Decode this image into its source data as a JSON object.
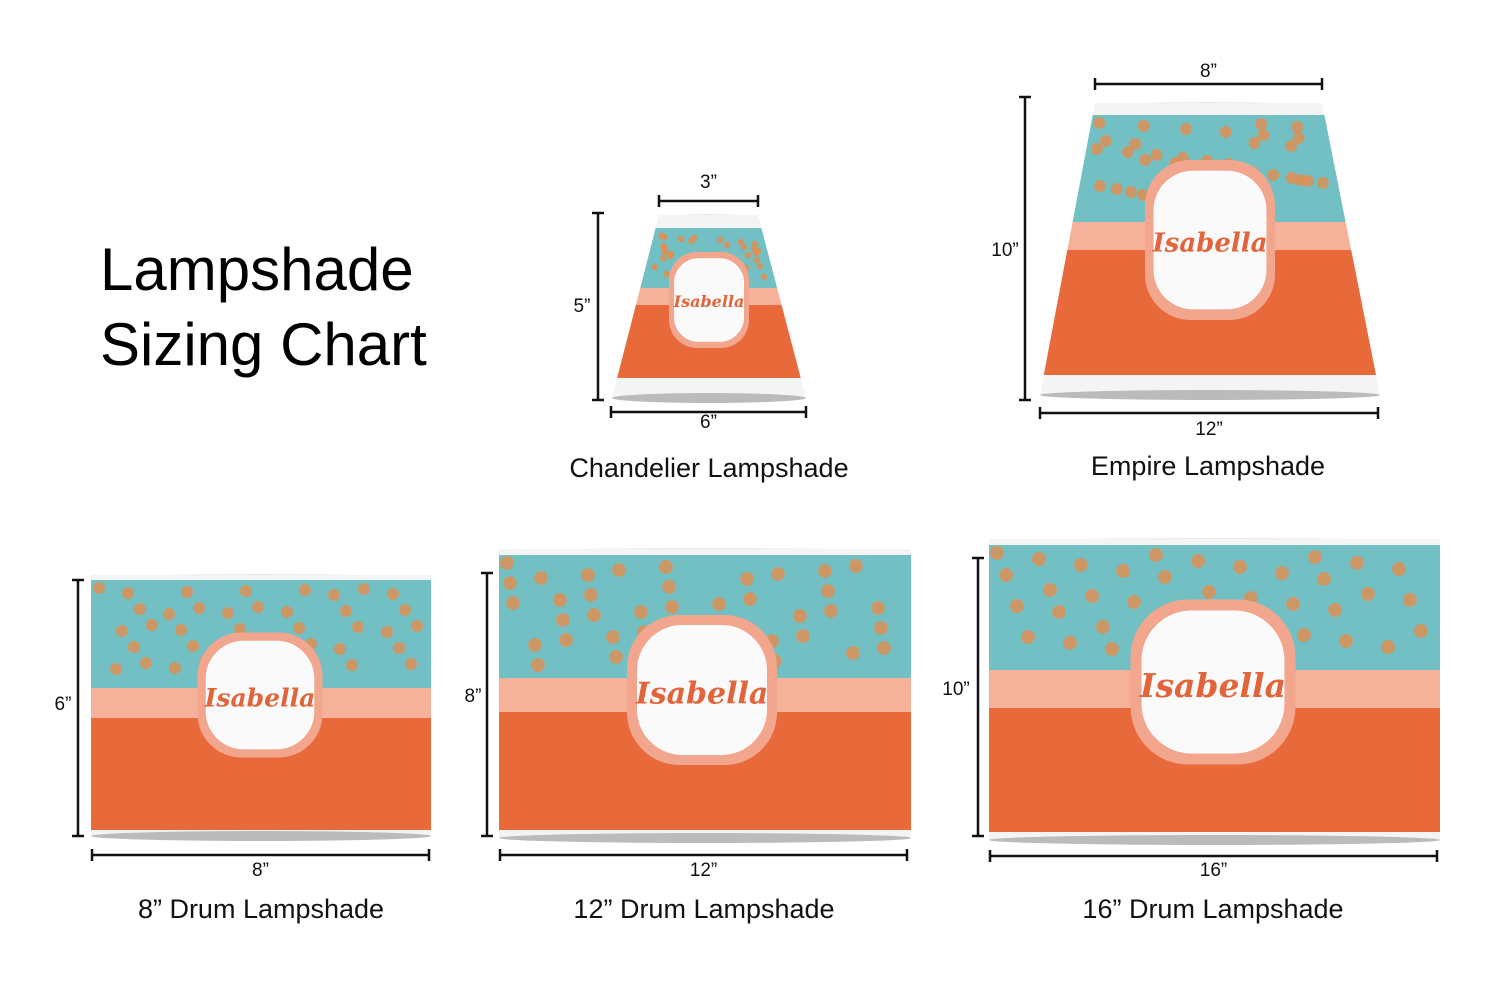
{
  "title": {
    "line1": "Lampshade",
    "line2": "Sizing Chart"
  },
  "colors": {
    "pattern": "#72c0c4",
    "band": "#f6b19a",
    "base": "#e8693a",
    "label_text": "#e2643a",
    "label_border": "#f3a68e",
    "rim": "#f4f4f4"
  },
  "personalization": "Isabella",
  "shades": [
    {
      "caption": "Chandelier Lampshade",
      "top": "3”",
      "height": "5”",
      "bottom": "6”"
    },
    {
      "caption": "Empire Lampshade",
      "top": "8”",
      "height": "10”",
      "bottom": "12”"
    },
    {
      "caption": "8” Drum Lampshade",
      "height": "6”",
      "bottom": "8”"
    },
    {
      "caption": "12” Drum Lampshade",
      "height": "8”",
      "bottom": "12”"
    },
    {
      "caption": "16” Drum Lampshade",
      "height": "10”",
      "bottom": "16”"
    }
  ]
}
